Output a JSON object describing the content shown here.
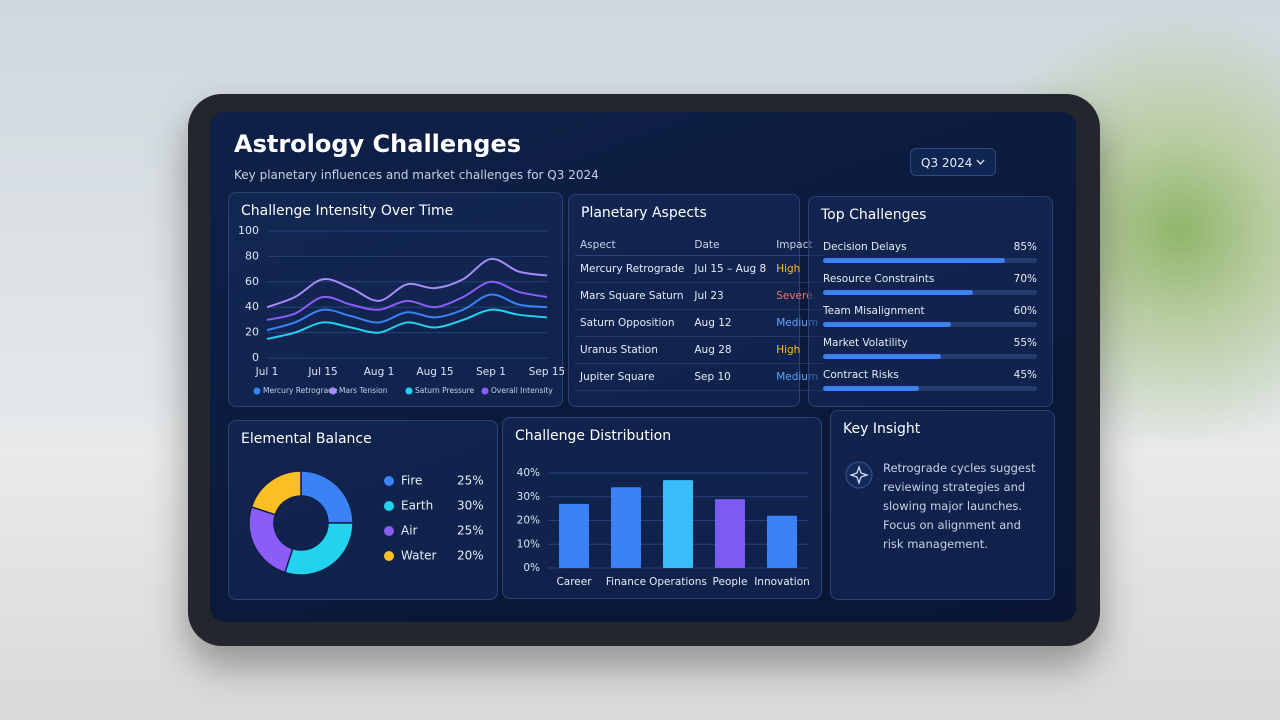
{
  "header": {
    "title": "Astrology Challenges",
    "subtitle": "Key planetary influences and market challenges for Q3 2024",
    "period": "Q3 2024"
  },
  "chart_data": [
    {
      "type": "line",
      "title": "Challenge Intensity Over Time",
      "categories": [
        "Jul 1",
        null,
        "Jul 15",
        null,
        "Aug 1",
        null,
        "Aug 15",
        null,
        "Sep 1",
        null,
        "Sep 15"
      ],
      "ylim": [
        0,
        100
      ],
      "yticks": [
        0,
        20,
        40,
        60,
        80,
        100
      ],
      "grid": true,
      "series": [
        {
          "name": "Mercury Retrograde",
          "color": "#3b82f6",
          "values": [
            22,
            28,
            38,
            33,
            28,
            36,
            32,
            38,
            50,
            42,
            40
          ]
        },
        {
          "name": "Mars Tension",
          "color": "#a78bfa",
          "values": [
            40,
            48,
            62,
            55,
            45,
            58,
            55,
            62,
            78,
            68,
            65
          ]
        },
        {
          "name": "Saturn Pressure",
          "color": "#22d3ee",
          "values": [
            15,
            20,
            28,
            24,
            20,
            28,
            24,
            30,
            38,
            34,
            32
          ]
        },
        {
          "name": "Overall Intensity",
          "color": "#8b5cf6",
          "values": [
            30,
            35,
            48,
            42,
            38,
            45,
            40,
            48,
            60,
            52,
            48
          ]
        }
      ]
    },
    {
      "type": "hbar",
      "title": "Top Challenges",
      "categories": [
        "Decision Delays",
        "Resource Constraints",
        "Team Misalignment",
        "Market Volatility",
        "Contract Risks"
      ],
      "values": [
        85,
        70,
        60,
        55,
        45
      ],
      "value_labels": [
        "85%",
        "70%",
        "60%",
        "55%",
        "45%"
      ],
      "xlim": [
        0,
        100
      ],
      "color": "#3b82f6"
    },
    {
      "type": "pie",
      "title": "Elemental Balance",
      "categories": [
        "Fire",
        "Earth",
        "Air",
        "Water"
      ],
      "values": [
        25,
        30,
        25,
        20
      ],
      "value_labels": [
        "25%",
        "30%",
        "25%",
        "20%"
      ],
      "colors": [
        "#3b82f6",
        "#22d3ee",
        "#8b5cf6",
        "#fbbf24"
      ]
    },
    {
      "type": "bar",
      "title": "Challenge Distribution",
      "categories": [
        "Career",
        "Finance",
        "Operations",
        "People",
        "Innovation"
      ],
      "values": [
        27,
        34,
        37,
        29,
        22
      ],
      "colors": [
        "#3b82f6",
        "#3b82f6",
        "#38bdf8",
        "#7c5cf0",
        "#3b82f6"
      ],
      "ylim": [
        0,
        40
      ],
      "yticks": [
        {
          "value": 0,
          "label": "0%"
        },
        {
          "value": 10,
          "label": "10%"
        },
        {
          "value": 20,
          "label": "20%"
        },
        {
          "value": 30,
          "label": "30%"
        },
        {
          "value": 40,
          "label": "40%"
        }
      ],
      "grid": true
    }
  ],
  "table": {
    "title": "Planetary Aspects",
    "columns": [
      "Aspect",
      "Date",
      "Impact"
    ],
    "rows": [
      {
        "aspect": "Mercury Retrograde",
        "date": "Jul 15 – Aug 8",
        "impact": "High",
        "color": "#fbbf24"
      },
      {
        "aspect": "Mars Square Saturn",
        "date": "Jul 23",
        "impact": "Severe",
        "color": "#f87171"
      },
      {
        "aspect": "Saturn Opposition",
        "date": "Aug 12",
        "impact": "Medium",
        "color": "#60a5fa"
      },
      {
        "aspect": "Uranus Station",
        "date": "Aug 28",
        "impact": "High",
        "color": "#fbbf24"
      },
      {
        "aspect": "Jupiter Square",
        "date": "Sep 10",
        "impact": "Medium",
        "color": "#60a5fa"
      }
    ]
  },
  "insight": {
    "title": "Key Insight",
    "text": "Retrograde cycles suggest reviewing strategies and slowing major launches. Focus on alignment and risk management."
  }
}
